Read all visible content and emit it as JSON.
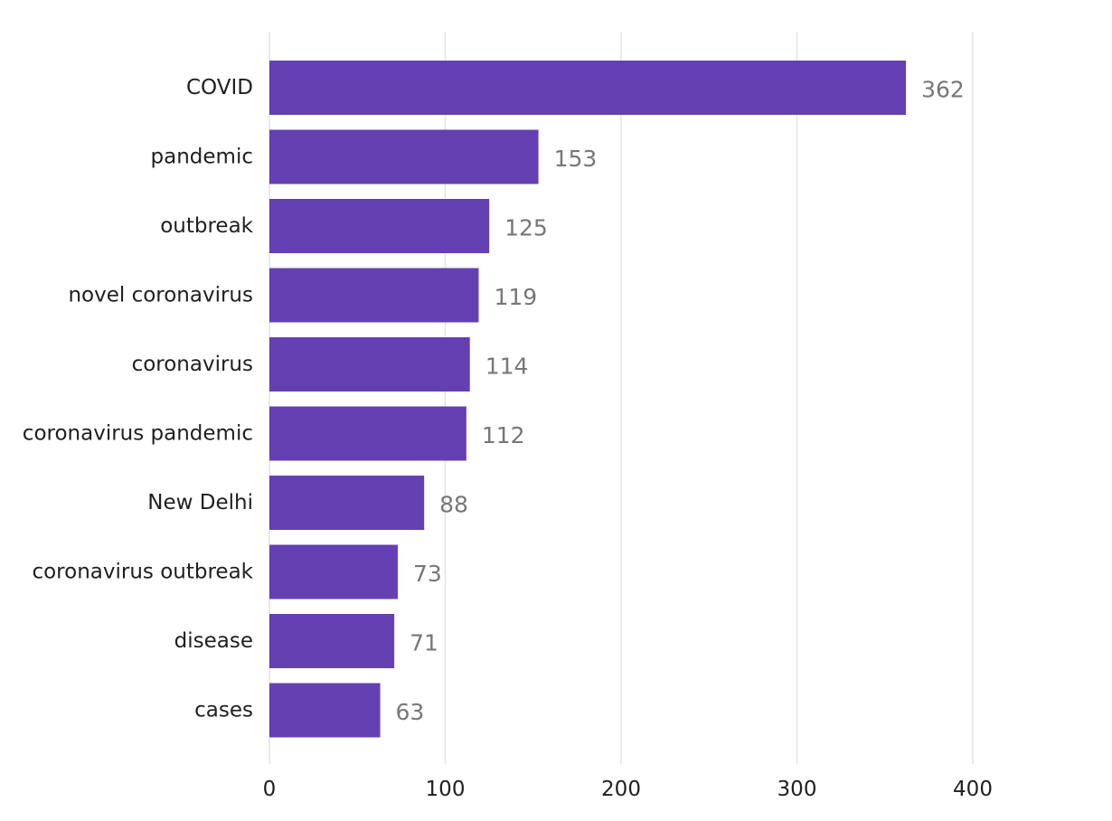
{
  "chart_data": {
    "type": "bar",
    "orientation": "horizontal",
    "title": "",
    "xlabel": "",
    "ylabel": "",
    "categories": [
      "COVID",
      "pandemic",
      "outbreak",
      "novel coronavirus",
      "coronavirus",
      "coronavirus pandemic",
      "New Delhi",
      "coronavirus outbreak",
      "disease",
      "cases"
    ],
    "values": [
      362,
      153,
      125,
      119,
      114,
      112,
      88,
      73,
      71,
      63
    ],
    "xlim": [
      0,
      400
    ],
    "xticks": [
      "0",
      "100",
      "200",
      "300",
      "400"
    ],
    "grid": "vertical",
    "bar_color": "#6440b3",
    "value_label_color": "#777777",
    "legend": "none"
  }
}
